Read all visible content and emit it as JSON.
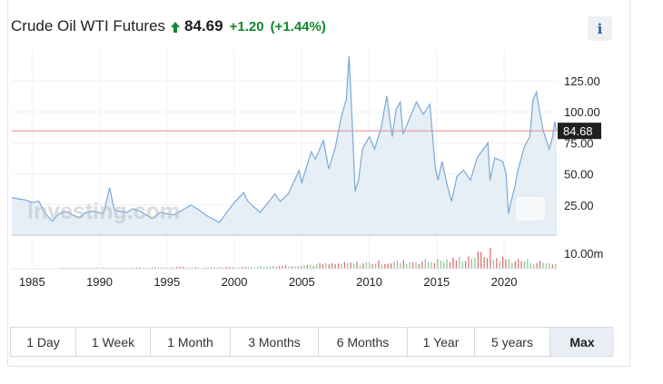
{
  "header": {
    "title": "Crude Oil WTI Futures",
    "price": "84.69",
    "change": "+1.20",
    "change_pct": "(+1.44%)",
    "up_color": "#118a2e",
    "info_label": "i"
  },
  "watermark": "Investing.com",
  "price_tag": "84.68",
  "volume_label": "10.00m",
  "range_buttons": [
    "1 Day",
    "1 Week",
    "1 Month",
    "3 Months",
    "6 Months",
    "1 Year",
    "5 years",
    "Max"
  ],
  "active_range": "Max",
  "chart_data": {
    "type": "area",
    "x_ticks": [
      "1985",
      "1990",
      "1995",
      "2000",
      "2005",
      "2010",
      "2015",
      "2020"
    ],
    "y_ticks": [
      "125.00",
      "100.00",
      "75.00",
      "50.00",
      "25.00"
    ],
    "ylim": [
      0,
      145
    ],
    "xlim": [
      1983.5,
      2023.9
    ],
    "last_price": 84.68,
    "line_color": "#7aaad6",
    "fill_color": "#e6eef6",
    "ref_line_color": "#e8878f",
    "series": [
      {
        "values": [
          [
            1983.5,
            31
          ],
          [
            1984.0,
            30
          ],
          [
            1984.5,
            29
          ],
          [
            1985.0,
            27
          ],
          [
            1985.5,
            28
          ],
          [
            1986.0,
            18
          ],
          [
            1986.5,
            12
          ],
          [
            1987.0,
            18
          ],
          [
            1987.5,
            20
          ],
          [
            1988.0,
            17
          ],
          [
            1988.5,
            15
          ],
          [
            1989.0,
            19
          ],
          [
            1989.5,
            20
          ],
          [
            1990.3,
            18
          ],
          [
            1990.75,
            39
          ],
          [
            1991.1,
            21
          ],
          [
            1991.5,
            20
          ],
          [
            1992.0,
            19
          ],
          [
            1992.5,
            22
          ],
          [
            1993.0,
            20
          ],
          [
            1993.9,
            14
          ],
          [
            1994.5,
            19
          ],
          [
            1995.0,
            18
          ],
          [
            1995.5,
            17
          ],
          [
            1996.0,
            20
          ],
          [
            1996.8,
            25
          ],
          [
            1997.5,
            20
          ],
          [
            1998.0,
            16
          ],
          [
            1998.9,
            11
          ],
          [
            1999.5,
            20
          ],
          [
            2000.0,
            27
          ],
          [
            2000.7,
            35
          ],
          [
            2001.0,
            28
          ],
          [
            2001.9,
            19
          ],
          [
            2002.5,
            27
          ],
          [
            2003.0,
            34
          ],
          [
            2003.4,
            28
          ],
          [
            2004.0,
            34
          ],
          [
            2004.8,
            53
          ],
          [
            2005.0,
            43
          ],
          [
            2005.7,
            68
          ],
          [
            2006.0,
            62
          ],
          [
            2006.6,
            77
          ],
          [
            2007.0,
            54
          ],
          [
            2007.5,
            72
          ],
          [
            2007.9,
            95
          ],
          [
            2008.3,
            110
          ],
          [
            2008.5,
            145
          ],
          [
            2008.7,
            100
          ],
          [
            2008.95,
            36
          ],
          [
            2009.2,
            45
          ],
          [
            2009.5,
            70
          ],
          [
            2010.0,
            80
          ],
          [
            2010.4,
            70
          ],
          [
            2010.9,
            88
          ],
          [
            2011.3,
            113
          ],
          [
            2011.7,
            80
          ],
          [
            2012.0,
            102
          ],
          [
            2012.3,
            108
          ],
          [
            2012.5,
            82
          ],
          [
            2013.0,
            95
          ],
          [
            2013.5,
            108
          ],
          [
            2014.0,
            98
          ],
          [
            2014.5,
            106
          ],
          [
            2014.9,
            55
          ],
          [
            2015.1,
            45
          ],
          [
            2015.4,
            60
          ],
          [
            2015.8,
            40
          ],
          [
            2016.1,
            28
          ],
          [
            2016.5,
            48
          ],
          [
            2017.0,
            53
          ],
          [
            2017.5,
            45
          ],
          [
            2018.0,
            63
          ],
          [
            2018.8,
            75
          ],
          [
            2018.95,
            45
          ],
          [
            2019.3,
            63
          ],
          [
            2019.9,
            60
          ],
          [
            2020.15,
            50
          ],
          [
            2020.32,
            18
          ],
          [
            2020.45,
            25
          ],
          [
            2020.8,
            40
          ],
          [
            2021.0,
            52
          ],
          [
            2021.5,
            72
          ],
          [
            2021.9,
            80
          ],
          [
            2022.15,
            110
          ],
          [
            2022.4,
            116
          ],
          [
            2022.6,
            102
          ],
          [
            2022.9,
            85
          ],
          [
            2023.1,
            78
          ],
          [
            2023.35,
            70
          ],
          [
            2023.6,
            80
          ],
          [
            2023.75,
            92
          ],
          [
            2023.9,
            84.68
          ]
        ]
      }
    ]
  }
}
